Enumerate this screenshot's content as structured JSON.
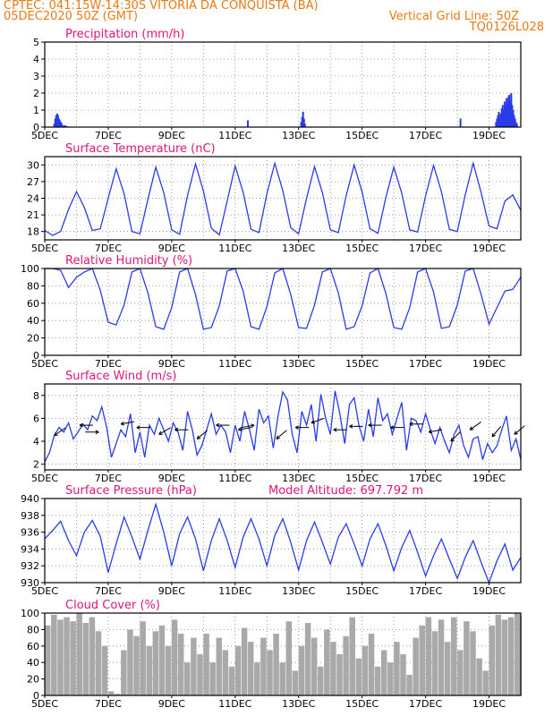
{
  "header": {
    "line1": "CPTEC:   041:15W-14:30S   VITORIA DA CONQUISTA (BA)",
    "line2": "05DEC2020 50Z (GMT)",
    "grid_line": "Vertical Grid Line: 50Z",
    "model": "TQ0126L028",
    "text_color": "#e87a14"
  },
  "colors": {
    "title": "#e0157a",
    "line": "#2a3ce8",
    "bar": "#2a3ce8",
    "cloud": "#a9a9a9",
    "grid": "#888888"
  },
  "x_ticks": [
    "5DEC",
    "7DEC",
    "9DEC",
    "11DEC",
    "13DEC",
    "15DEC",
    "17DEC",
    "19DEC"
  ],
  "panels": [
    {
      "id": "precip",
      "title": "Precipitation (mm/h)",
      "ylim": [
        0,
        5
      ],
      "yticks": [
        "0",
        "1",
        "2",
        "3",
        "4",
        "5"
      ],
      "chart_data": {
        "type": "bar",
        "xlabel": "",
        "ylabel": "",
        "ylim": [
          0,
          5
        ],
        "x_range": [
          0,
          15
        ],
        "x": [
          0.3,
          0.33,
          0.36,
          0.39,
          0.42,
          0.45,
          0.48,
          0.51,
          0.54,
          0.6,
          0.65,
          0.7,
          6.4,
          8.08,
          8.11,
          8.14,
          8.17,
          8.2,
          13.1,
          14.22,
          14.25,
          14.28,
          14.31,
          14.34,
          14.37,
          14.4,
          14.43,
          14.46,
          14.49,
          14.52,
          14.55,
          14.58,
          14.61,
          14.64,
          14.67,
          14.7,
          14.73,
          14.76,
          14.79,
          14.82,
          14.85,
          14.88
        ],
        "values": [
          0.2,
          0.5,
          0.7,
          0.8,
          0.7,
          0.5,
          0.4,
          0.3,
          0.2,
          0.1,
          0.1,
          0.05,
          0.4,
          0.3,
          0.6,
          0.9,
          0.5,
          0.2,
          0.5,
          0.3,
          0.5,
          0.7,
          0.9,
          0.6,
          0.8,
          1.1,
          1.3,
          1.0,
          1.5,
          1.2,
          1.7,
          1.4,
          1.8,
          1.9,
          1.6,
          2.0,
          1.3,
          1.0,
          0.7,
          0.5,
          0.3,
          0.2
        ]
      }
    },
    {
      "id": "temp",
      "title": "Surface Temperature (nC)",
      "ylim": [
        16.5,
        31.5
      ],
      "yticks": [
        "18",
        "21",
        "24",
        "27",
        "30"
      ],
      "chart_data": {
        "type": "line",
        "xlabel": "",
        "ylabel": "",
        "ylim": [
          16.5,
          31.5
        ],
        "x_range": [
          0,
          15
        ],
        "x": [
          0,
          0.25,
          0.5,
          0.75,
          1.0,
          1.25,
          1.5,
          1.75,
          2.0,
          2.25,
          2.5,
          2.75,
          3.0,
          3.25,
          3.5,
          3.75,
          4.0,
          4.25,
          4.5,
          4.75,
          5.0,
          5.25,
          5.5,
          5.75,
          6.0,
          6.25,
          6.5,
          6.75,
          7.0,
          7.25,
          7.5,
          7.75,
          8.0,
          8.25,
          8.5,
          8.75,
          9.0,
          9.25,
          9.5,
          9.75,
          10.0,
          10.25,
          10.5,
          10.75,
          11.0,
          11.25,
          11.5,
          11.75,
          12.0,
          12.25,
          12.5,
          12.75,
          13.0,
          13.25,
          13.5,
          13.75,
          14.0,
          14.25,
          14.5,
          14.75,
          15.0
        ],
        "values": [
          18.2,
          17.3,
          18.0,
          22.0,
          25.2,
          22.3,
          18.2,
          18.5,
          24.0,
          29.3,
          24.8,
          18.0,
          17.6,
          23.8,
          29.6,
          25.0,
          18.3,
          17.5,
          24.5,
          30.2,
          25.3,
          18.6,
          17.4,
          23.5,
          29.8,
          25.1,
          18.4,
          17.8,
          24.8,
          30.3,
          25.4,
          18.7,
          17.6,
          24.0,
          29.7,
          25.0,
          18.3,
          17.8,
          24.5,
          30.0,
          25.1,
          18.5,
          17.7,
          24.2,
          29.6,
          24.9,
          18.3,
          17.9,
          24.4,
          29.9,
          25.2,
          18.4,
          18.0,
          24.6,
          30.3,
          25.0,
          19.0,
          18.5,
          23.5,
          24.6,
          21.8
        ]
      }
    },
    {
      "id": "rh",
      "title": "Relative Humidity (%)",
      "ylim": [
        0,
        100
      ],
      "yticks": [
        "0",
        "20",
        "40",
        "60",
        "80",
        "100"
      ],
      "chart_data": {
        "type": "line",
        "xlabel": "",
        "ylabel": "",
        "ylim": [
          0,
          100
        ],
        "x_range": [
          0,
          15
        ],
        "x": [
          0,
          0.25,
          0.5,
          0.75,
          1.0,
          1.25,
          1.5,
          1.75,
          2.0,
          2.25,
          2.5,
          2.75,
          3.0,
          3.25,
          3.5,
          3.75,
          4.0,
          4.25,
          4.5,
          4.75,
          5.0,
          5.25,
          5.5,
          5.75,
          6.0,
          6.25,
          6.5,
          6.75,
          7.0,
          7.25,
          7.5,
          7.75,
          8.0,
          8.25,
          8.5,
          8.75,
          9.0,
          9.25,
          9.5,
          9.75,
          10.0,
          10.25,
          10.5,
          10.75,
          11.0,
          11.25,
          11.5,
          11.75,
          12.0,
          12.25,
          12.5,
          12.75,
          13.0,
          13.25,
          13.5,
          13.75,
          14.0,
          14.25,
          14.5,
          14.75,
          15.0
        ],
        "values": [
          100,
          100,
          98,
          78,
          90,
          96,
          100,
          75,
          38,
          35,
          58,
          96,
          100,
          72,
          33,
          30,
          55,
          96,
          100,
          70,
          30,
          32,
          57,
          97,
          100,
          74,
          33,
          30,
          56,
          95,
          100,
          70,
          32,
          31,
          58,
          96,
          100,
          72,
          30,
          33,
          57,
          95,
          100,
          71,
          32,
          30,
          55,
          96,
          100,
          73,
          31,
          33,
          58,
          97,
          100,
          70,
          36,
          55,
          74,
          76,
          90
        ]
      }
    },
    {
      "id": "wind",
      "title": "Surface Wind (m/s)",
      "ylim": [
        1.5,
        9
      ],
      "yticks": [
        "2",
        "4",
        "6",
        "8"
      ],
      "chart_data": {
        "type": "line",
        "xlabel": "",
        "ylabel": "",
        "ylim": [
          1.5,
          9
        ],
        "x_range": [
          0,
          15
        ],
        "x": [
          0,
          0.15,
          0.3,
          0.45,
          0.6,
          0.75,
          0.9,
          1.05,
          1.2,
          1.35,
          1.5,
          1.65,
          1.8,
          1.95,
          2.1,
          2.25,
          2.4,
          2.55,
          2.7,
          2.85,
          3.0,
          3.15,
          3.3,
          3.45,
          3.6,
          3.75,
          3.9,
          4.05,
          4.2,
          4.35,
          4.5,
          4.65,
          4.8,
          4.95,
          5.1,
          5.25,
          5.4,
          5.55,
          5.7,
          5.85,
          6.0,
          6.15,
          6.3,
          6.45,
          6.6,
          6.75,
          6.9,
          7.05,
          7.2,
          7.35,
          7.5,
          7.65,
          7.8,
          7.95,
          8.1,
          8.25,
          8.4,
          8.55,
          8.7,
          8.85,
          9.0,
          9.15,
          9.3,
          9.45,
          9.6,
          9.75,
          9.9,
          10.05,
          10.2,
          10.35,
          10.5,
          10.65,
          10.8,
          10.95,
          11.1,
          11.25,
          11.4,
          11.55,
          11.7,
          11.85,
          12.0,
          12.15,
          12.3,
          12.45,
          12.6,
          12.75,
          12.9,
          13.05,
          13.2,
          13.35,
          13.5,
          13.65,
          13.8,
          13.95,
          14.1,
          14.25,
          14.4,
          14.55,
          14.7,
          14.85,
          15.0
        ],
        "values": [
          2.2,
          3.0,
          4.5,
          5.2,
          4.8,
          5.6,
          4.2,
          4.8,
          5.5,
          5.0,
          6.2,
          5.8,
          7.0,
          5.2,
          2.6,
          3.8,
          5.0,
          4.4,
          6.4,
          3.0,
          4.8,
          2.6,
          5.4,
          4.6,
          6.0,
          5.0,
          4.0,
          5.6,
          4.8,
          3.2,
          6.6,
          5.0,
          2.8,
          3.6,
          5.0,
          6.4,
          4.6,
          5.4,
          4.8,
          3.0,
          5.4,
          4.0,
          6.6,
          5.0,
          3.2,
          6.8,
          5.6,
          6.2,
          3.4,
          6.2,
          8.3,
          7.6,
          4.6,
          3.0,
          6.6,
          5.4,
          7.2,
          4.0,
          8.1,
          6.0,
          4.6,
          8.4,
          6.4,
          3.8,
          7.2,
          7.8,
          5.4,
          4.0,
          6.8,
          4.4,
          7.8,
          5.8,
          6.4,
          4.6,
          6.0,
          7.4,
          3.2,
          6.0,
          5.8,
          4.8,
          6.4,
          5.0,
          3.8,
          5.2,
          4.0,
          3.0,
          4.6,
          5.4,
          3.6,
          2.6,
          4.2,
          4.4,
          2.4,
          3.8,
          3.0,
          3.6,
          5.0,
          6.2,
          3.2,
          4.2,
          2.4
        ],
        "barb_x": [
          0.3,
          1.1,
          1.7,
          2.4,
          2.9,
          3.6,
          4.1,
          4.8,
          5.4,
          6.1,
          6.6,
          7.3,
          7.9,
          8.4,
          9.1,
          9.6,
          10.2,
          10.9,
          11.5,
          12.1,
          12.8,
          13.4,
          14.1,
          14.8
        ],
        "barb_y": [
          4.5,
          5.4,
          4.8,
          5.5,
          5.2,
          4.6,
          5.0,
          4.2,
          5.4,
          5.0,
          5.4,
          4.2,
          5.2,
          5.6,
          5.0,
          5.3,
          5.4,
          5.2,
          5.5,
          4.8,
          4.0,
          5.0,
          4.4,
          4.6
        ],
        "barb_dir": [
          35,
          0,
          180,
          10,
          0,
          30,
          0,
          40,
          0,
          10,
          190,
          40,
          0,
          20,
          0,
          0,
          0,
          0,
          0,
          10,
          45,
          35,
          50,
          40
        ]
      }
    },
    {
      "id": "pres",
      "title": "Surface Pressure (hPa)",
      "extra": "Model Altitude: 697.792  m",
      "ylim": [
        930,
        940
      ],
      "yticks": [
        "930",
        "932",
        "934",
        "936",
        "938",
        "940"
      ],
      "chart_data": {
        "type": "line",
        "xlabel": "",
        "ylabel": "",
        "ylim": [
          930,
          940
        ],
        "x_range": [
          0,
          15
        ],
        "x": [
          0,
          0.25,
          0.5,
          0.75,
          1.0,
          1.25,
          1.5,
          1.75,
          2.0,
          2.25,
          2.5,
          2.75,
          3.0,
          3.25,
          3.5,
          3.75,
          4.0,
          4.25,
          4.5,
          4.75,
          5.0,
          5.25,
          5.5,
          5.75,
          6.0,
          6.25,
          6.5,
          6.75,
          7.0,
          7.25,
          7.5,
          7.75,
          8.0,
          8.25,
          8.5,
          8.75,
          9.0,
          9.25,
          9.5,
          9.75,
          10.0,
          10.25,
          10.5,
          10.75,
          11.0,
          11.25,
          11.5,
          11.75,
          12.0,
          12.25,
          12.5,
          12.75,
          13.0,
          13.25,
          13.5,
          13.75,
          14.0,
          14.25,
          14.5,
          14.75,
          15.0
        ],
        "values": [
          935.2,
          936.2,
          937.3,
          935.0,
          933.2,
          936.0,
          937.4,
          935.5,
          931.2,
          934.6,
          937.8,
          935.4,
          932.8,
          936.2,
          939.3,
          936.0,
          932.0,
          935.8,
          937.8,
          935.2,
          931.4,
          935.0,
          937.6,
          935.0,
          931.8,
          935.4,
          937.6,
          935.2,
          932.0,
          935.6,
          937.6,
          934.8,
          931.5,
          935.0,
          937.2,
          934.8,
          932.2,
          935.4,
          937.0,
          934.6,
          932.0,
          935.2,
          937.0,
          934.4,
          931.4,
          934.2,
          936.2,
          933.6,
          930.8,
          933.2,
          935.2,
          932.8,
          930.5,
          933.0,
          935.0,
          932.4,
          930.0,
          932.6,
          934.6,
          931.5,
          933.0
        ]
      }
    },
    {
      "id": "cloud",
      "title": "Cloud Cover (%)",
      "ylim": [
        0,
        100
      ],
      "yticks": [
        "0",
        "20",
        "40",
        "60",
        "80",
        "100"
      ],
      "chart_data": {
        "type": "area",
        "xlabel": "",
        "ylabel": "",
        "ylim": [
          0,
          100
        ],
        "x_range": [
          0,
          15
        ],
        "x": [
          0,
          0.2,
          0.4,
          0.6,
          0.8,
          1.0,
          1.2,
          1.4,
          1.6,
          1.8,
          2.0,
          2.2,
          2.4,
          2.6,
          2.8,
          3.0,
          3.2,
          3.4,
          3.6,
          3.8,
          4.0,
          4.2,
          4.4,
          4.6,
          4.8,
          5.0,
          5.2,
          5.4,
          5.6,
          5.8,
          6.0,
          6.2,
          6.4,
          6.6,
          6.8,
          7.0,
          7.2,
          7.4,
          7.6,
          7.8,
          8.0,
          8.2,
          8.4,
          8.6,
          8.8,
          9.0,
          9.2,
          9.4,
          9.6,
          9.8,
          10.0,
          10.2,
          10.4,
          10.6,
          10.8,
          11.0,
          11.2,
          11.4,
          11.6,
          11.8,
          12.0,
          12.2,
          12.4,
          12.6,
          12.8,
          13.0,
          13.2,
          13.4,
          13.6,
          13.8,
          14.0,
          14.2,
          14.4,
          14.6,
          14.8,
          15.0
        ],
        "values": [
          85,
          98,
          92,
          95,
          90,
          100,
          88,
          95,
          78,
          60,
          5,
          2,
          55,
          80,
          72,
          90,
          60,
          78,
          85,
          60,
          92,
          75,
          40,
          70,
          50,
          75,
          40,
          70,
          55,
          35,
          60,
          82,
          65,
          40,
          70,
          55,
          75,
          40,
          90,
          30,
          60,
          88,
          70,
          35,
          80,
          65,
          50,
          72,
          95,
          45,
          60,
          75,
          35,
          55,
          40,
          65,
          50,
          25,
          70,
          85,
          95,
          78,
          92,
          65,
          95,
          55,
          90,
          78,
          45,
          30,
          85,
          98,
          92,
          95,
          100,
          96
        ]
      }
    }
  ]
}
